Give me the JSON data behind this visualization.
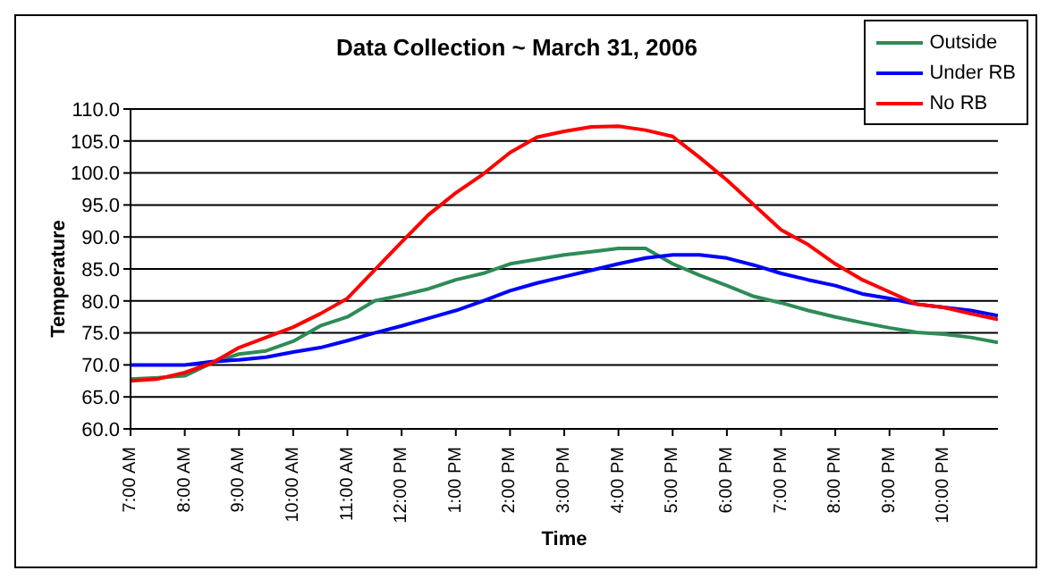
{
  "chart_data": {
    "type": "line",
    "title": "Data Collection ~ March 31, 2006",
    "xlabel": "Time",
    "ylabel": "Temperature",
    "x": [
      7,
      7.5,
      8,
      8.5,
      9,
      9.5,
      10,
      10.5,
      11,
      11.5,
      12,
      12.5,
      13,
      13.5,
      14,
      14.5,
      15,
      15.5,
      16,
      16.5,
      17,
      17.5,
      18,
      18.5,
      19,
      19.5,
      20,
      20.5,
      21,
      21.5,
      22,
      22.5,
      23
    ],
    "series": [
      {
        "name": "Outside",
        "color": "#2e8b57",
        "values": [
          67.8,
          68,
          68.3,
          70.3,
          71.7,
          72.2,
          73.7,
          76.1,
          77.5,
          80,
          80.9,
          81.9,
          83.3,
          84.3,
          85.8,
          86.5,
          87.2,
          87.7,
          88.2,
          88.2,
          85.8,
          84,
          82.4,
          80.7,
          79.7,
          78.5,
          77.5,
          76.6,
          75.8,
          75.1,
          74.8,
          74.3,
          73.5
        ]
      },
      {
        "name": "Under RB",
        "color": "#0000ff",
        "values": [
          70,
          70,
          70,
          70.5,
          70.8,
          71.2,
          72,
          72.7,
          73.8,
          75,
          76.1,
          77.3,
          78.5,
          80,
          81.6,
          82.8,
          83.8,
          84.8,
          85.8,
          86.7,
          87.2,
          87.2,
          86.7,
          85.6,
          84.3,
          83.3,
          82.4,
          81.1,
          80.4,
          79.5,
          79,
          78.5,
          77.7
        ]
      },
      {
        "name": "No RB",
        "color": "#ff0000",
        "values": [
          67.5,
          67.8,
          68.8,
          70.3,
          72.7,
          74.3,
          75.9,
          78,
          80.4,
          84.8,
          89.2,
          93.5,
          96.9,
          99.8,
          103.2,
          105.6,
          106.5,
          107.2,
          107.3,
          106.7,
          105.7,
          102.4,
          98.9,
          95,
          91.1,
          88.8,
          85.8,
          83.3,
          81.4,
          79.5,
          79,
          78,
          77.1
        ]
      }
    ],
    "xlim": [
      7,
      23
    ],
    "xticks": [
      {
        "value": 7,
        "label": "7:00 AM"
      },
      {
        "value": 8,
        "label": "8:00 AM"
      },
      {
        "value": 9,
        "label": "9:00 AM"
      },
      {
        "value": 10,
        "label": "10:00 AM"
      },
      {
        "value": 11,
        "label": "11:00 AM"
      },
      {
        "value": 12,
        "label": "12:00 PM"
      },
      {
        "value": 13,
        "label": "1:00 PM"
      },
      {
        "value": 14,
        "label": "2:00 PM"
      },
      {
        "value": 15,
        "label": "3:00 PM"
      },
      {
        "value": 16,
        "label": "4:00 PM"
      },
      {
        "value": 17,
        "label": "5:00 PM"
      },
      {
        "value": 18,
        "label": "6:00 PM"
      },
      {
        "value": 19,
        "label": "7:00 PM"
      },
      {
        "value": 20,
        "label": "8:00 PM"
      },
      {
        "value": 21,
        "label": "9:00 PM"
      },
      {
        "value": 22,
        "label": "10:00 PM"
      }
    ],
    "ylim": [
      60,
      110
    ],
    "yticks": [
      {
        "value": 60,
        "label": "60.0"
      },
      {
        "value": 65,
        "label": "65.0"
      },
      {
        "value": 70,
        "label": "70.0"
      },
      {
        "value": 75,
        "label": "75.0"
      },
      {
        "value": 80,
        "label": "80.0"
      },
      {
        "value": 85,
        "label": "85.0"
      },
      {
        "value": 90,
        "label": "90.0"
      },
      {
        "value": 95,
        "label": "95.0"
      },
      {
        "value": 100,
        "label": "100.0"
      },
      {
        "value": 105,
        "label": "105.0"
      },
      {
        "value": 110,
        "label": "110.0"
      }
    ],
    "grid": "y",
    "legend": "top right",
    "marker": "none",
    "line_style": "solid"
  }
}
